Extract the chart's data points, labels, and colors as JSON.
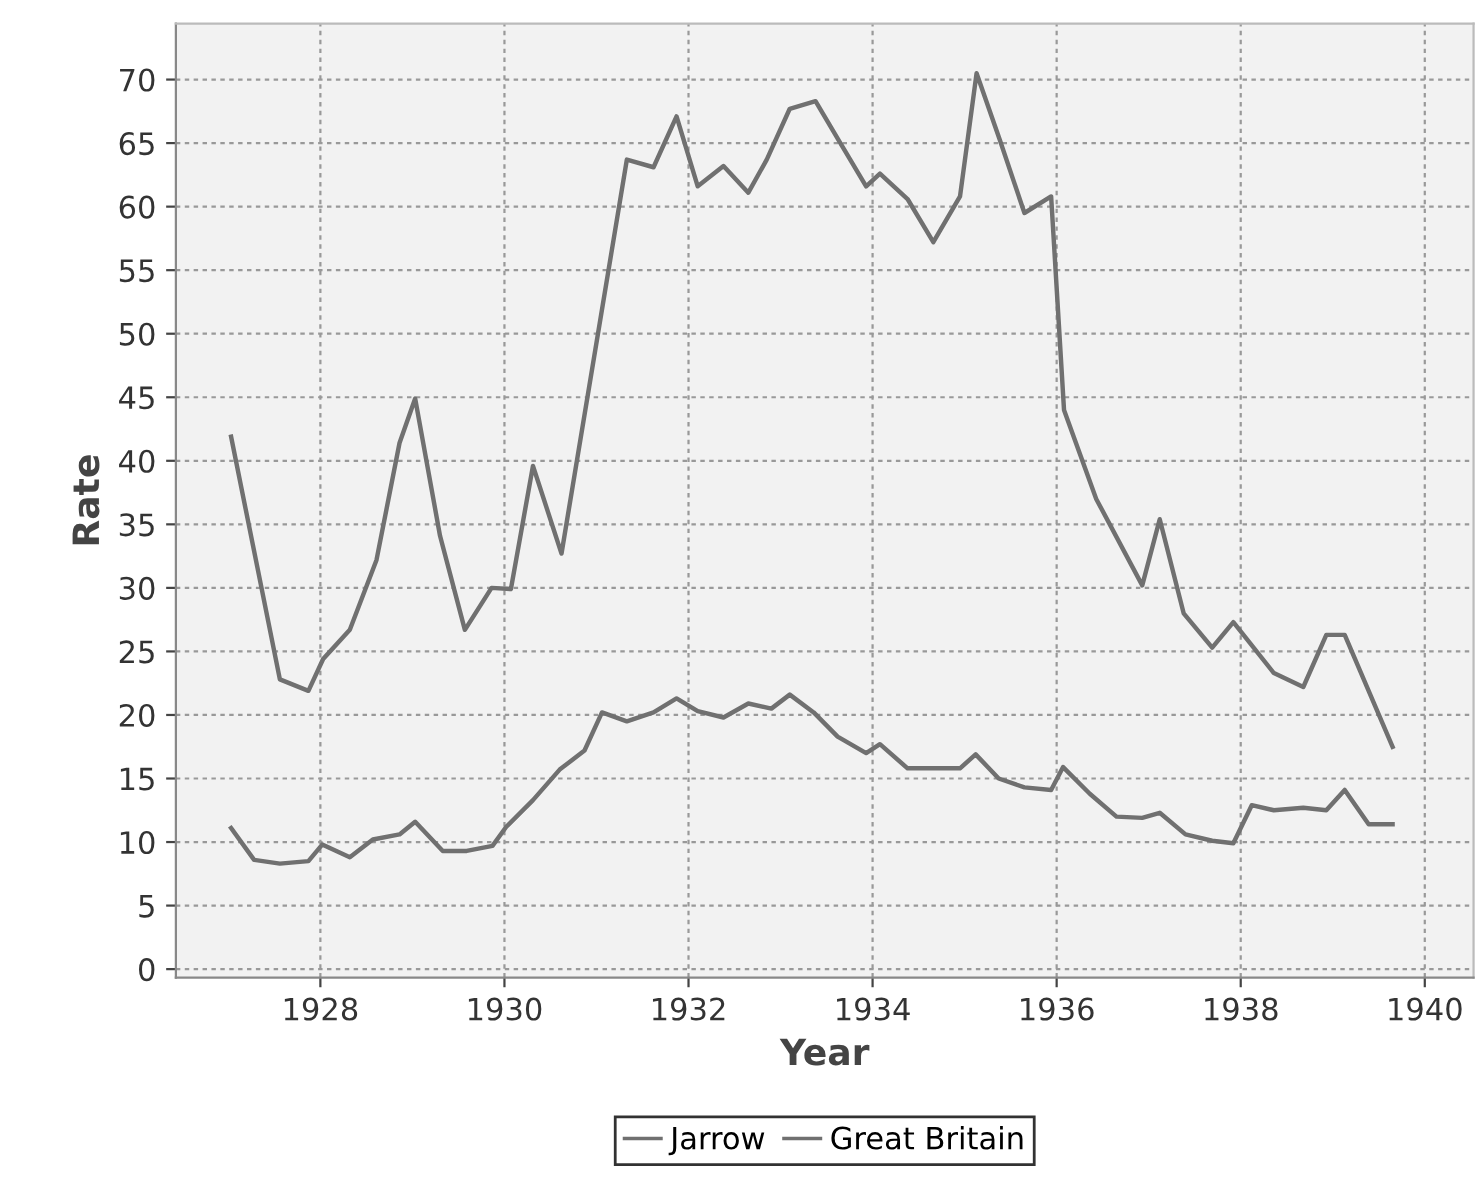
{
  "chart_data": {
    "type": "line",
    "xlabel": "Year",
    "ylabel": "Rate",
    "xlim": [
      1926.43,
      1940.53
    ],
    "ylim": [
      -0.66,
      74.4
    ],
    "xticks": [
      1928,
      1930,
      1932,
      1934,
      1936,
      1938,
      1940
    ],
    "yticks": [
      0,
      5,
      10,
      15,
      20,
      25,
      30,
      35,
      40,
      45,
      50,
      55,
      60,
      65,
      70
    ],
    "grid": true,
    "legend": "bottom",
    "marker": "none",
    "line_style": "solid",
    "series": [
      {
        "name": "Jarrow",
        "color": "#707070",
        "x": [
          1927.03,
          1927.56,
          1927.87,
          1928.03,
          1928.32,
          1928.61,
          1928.86,
          1929.03,
          1929.3,
          1929.57,
          1929.86,
          1930.07,
          1930.31,
          1930.62,
          1931.33,
          1931.62,
          1931.87,
          1932.1,
          1932.38,
          1932.65,
          1932.85,
          1933.1,
          1933.38,
          1933.65,
          1933.93,
          1934.08,
          1934.38,
          1934.66,
          1934.95,
          1935.13,
          1935.38,
          1935.65,
          1935.94,
          1936.08,
          1936.43,
          1936.93,
          1937.12,
          1937.38,
          1937.69,
          1937.92,
          1938.36,
          1938.68,
          1938.93,
          1939.13,
          1939.65
        ],
        "values": [
          41.9,
          22.8,
          21.9,
          24.4,
          26.7,
          32.2,
          41.4,
          44.9,
          34.1,
          26.7,
          30.0,
          29.9,
          39.6,
          32.7,
          63.7,
          63.1,
          67.1,
          61.6,
          63.2,
          61.1,
          63.7,
          67.7,
          68.3,
          65.0,
          61.6,
          62.6,
          60.6,
          57.2,
          60.8,
          70.5,
          65.3,
          59.5,
          60.8,
          44.0,
          37.0,
          30.2,
          35.4,
          28.0,
          25.3,
          27.3,
          23.3,
          22.2,
          26.3,
          26.3,
          17.5
        ]
      },
      {
        "name": "Great Britain",
        "color": "#707070",
        "x": [
          1927.03,
          1927.28,
          1927.56,
          1927.87,
          1928.02,
          1928.32,
          1928.57,
          1928.86,
          1929.03,
          1929.33,
          1929.59,
          1929.87,
          1930.02,
          1930.31,
          1930.6,
          1930.87,
          1931.06,
          1931.33,
          1931.62,
          1931.87,
          1932.1,
          1932.38,
          1932.65,
          1932.9,
          1933.1,
          1933.36,
          1933.62,
          1933.93,
          1934.08,
          1934.38,
          1934.95,
          1935.12,
          1935.37,
          1935.65,
          1935.94,
          1936.07,
          1936.36,
          1936.65,
          1936.93,
          1937.12,
          1937.4,
          1937.69,
          1937.92,
          1938.12,
          1938.36,
          1938.68,
          1938.93,
          1939.13,
          1939.39,
          1939.65
        ],
        "values": [
          11.1,
          8.6,
          8.3,
          8.5,
          9.8,
          8.8,
          10.2,
          10.6,
          11.6,
          9.3,
          9.3,
          9.7,
          11.2,
          13.3,
          15.7,
          17.2,
          20.2,
          19.5,
          20.2,
          21.3,
          20.3,
          19.8,
          20.9,
          20.5,
          21.6,
          20.2,
          18.3,
          17.0,
          17.7,
          15.8,
          15.8,
          16.9,
          15.0,
          14.3,
          14.1,
          15.9,
          13.8,
          12.0,
          11.9,
          12.3,
          10.6,
          10.1,
          9.9,
          12.9,
          12.5,
          12.7,
          12.5,
          14.1,
          11.4,
          11.4
        ]
      }
    ]
  }
}
